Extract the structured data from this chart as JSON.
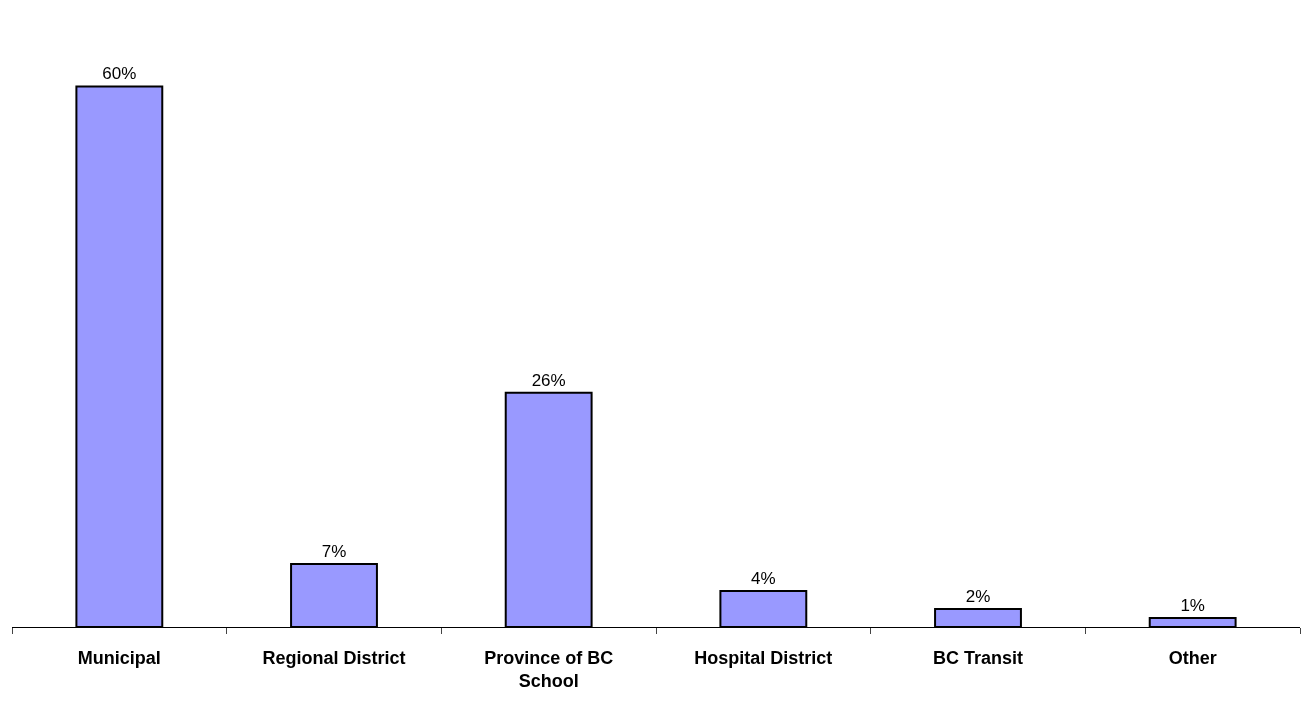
{
  "chart_data": {
    "type": "bar",
    "categories": [
      "Municipal",
      "Regional District",
      "Province of BC School",
      "Hospital District",
      "BC Transit",
      "Other"
    ],
    "values": [
      60,
      7,
      26,
      4,
      2,
      1
    ],
    "value_labels": [
      "60%",
      "7%",
      "26%",
      "4%",
      "2%",
      "1%"
    ],
    "color": "#9999ff",
    "tick_labels": "x"
  }
}
